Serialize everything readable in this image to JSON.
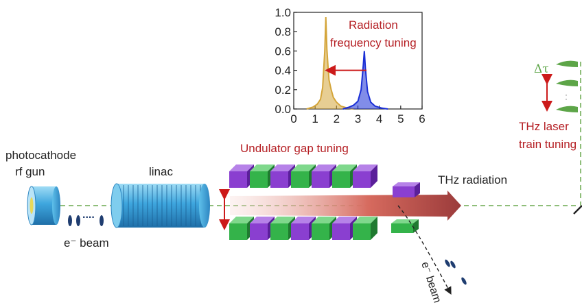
{
  "labels": {
    "gun_line1": "photocathode",
    "gun_line2": "rf gun",
    "linac": "linac",
    "beam1": "e⁻ beam",
    "dots": "....",
    "undulator_tuning": "Undulator gap tuning",
    "thz_radiation": "THz radiation",
    "beam2": "e⁻ beam",
    "delta_tau": "Δτ",
    "train_line1": "THz laser",
    "train_line2": "train tuning"
  },
  "inset": {
    "annotation_line1": "Radiation",
    "annotation_line2": "frequency tuning",
    "xticks": [
      "0",
      "1",
      "2",
      "3",
      "4",
      "5",
      "6"
    ],
    "yticks": [
      "0.0",
      "0.2",
      "0.4",
      "0.6",
      "0.8",
      "1.0"
    ]
  },
  "chart_data": {
    "type": "line",
    "xlim": [
      0,
      6
    ],
    "ylim": [
      0,
      1.0
    ],
    "xticks": [
      0,
      1,
      2,
      3,
      4,
      5,
      6
    ],
    "yticks": [
      0.0,
      0.2,
      0.4,
      0.6,
      0.8,
      1.0
    ],
    "series": [
      {
        "color": "#d4a53a",
        "x": [
          0.6,
          0.9,
          1.1,
          1.25,
          1.35,
          1.45,
          1.5,
          1.55,
          1.6,
          1.65,
          1.75,
          1.85,
          2.0,
          2.2,
          2.5,
          2.8
        ],
        "y": [
          0.0,
          0.02,
          0.05,
          0.1,
          0.22,
          0.6,
          0.95,
          0.62,
          0.45,
          0.3,
          0.2,
          0.12,
          0.07,
          0.03,
          0.01,
          0.0
        ]
      },
      {
        "color": "#1a2fd6",
        "x": [
          2.3,
          2.6,
          2.8,
          3.0,
          3.15,
          3.25,
          3.3,
          3.35,
          3.45,
          3.6,
          3.8,
          4.1,
          4.4
        ],
        "y": [
          0.0,
          0.02,
          0.04,
          0.08,
          0.2,
          0.45,
          0.6,
          0.42,
          0.18,
          0.07,
          0.03,
          0.01,
          0.0
        ]
      }
    ],
    "arrow": {
      "from": [
        3.4,
        0.4
      ],
      "to": [
        1.45,
        0.4
      ],
      "color": "#cc1a1a"
    }
  },
  "colors": {
    "purple": "#8a3fd0",
    "green": "#34b34a",
    "linac_blue": "#3ea6de",
    "red_text": "#b51f24",
    "beam_line": "#6aa84f",
    "thz_arrow": "#9b3b3b"
  }
}
